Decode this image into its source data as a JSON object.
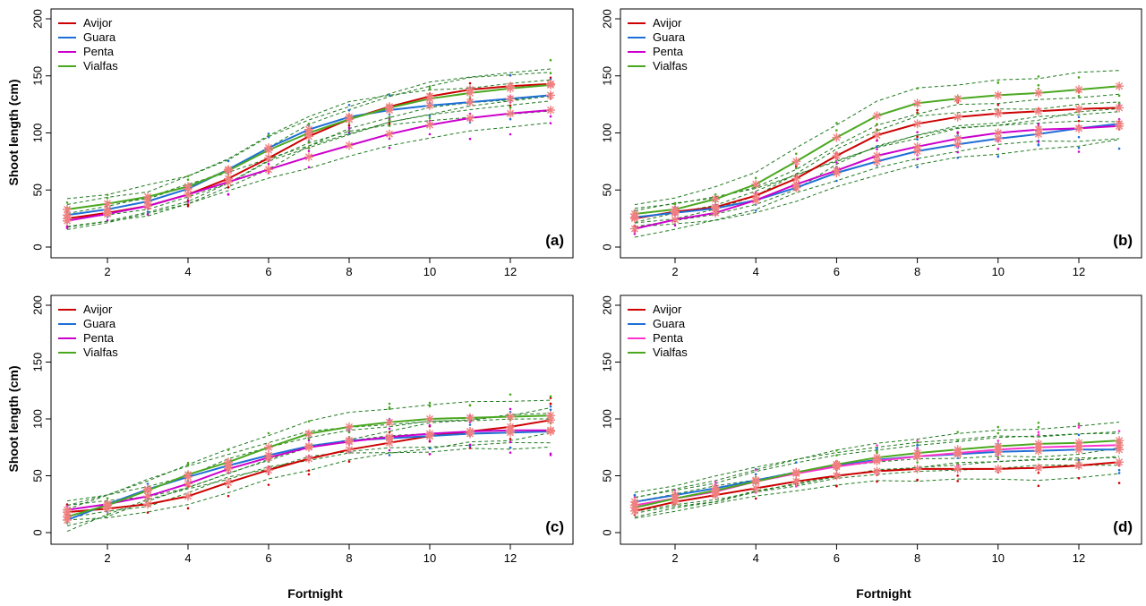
{
  "figure": {
    "ylabel": "Shoot length  (cm)",
    "xlabel": "Fortnight"
  },
  "chart_data": [
    {
      "type": "line",
      "panel_label": "(a)",
      "xlabel": "Fortnight",
      "ylabel": "Shoot length  (cm)",
      "xlim": [
        0.6,
        13.4
      ],
      "ylim": [
        -10,
        205
      ],
      "x_ticks": [
        2,
        4,
        6,
        8,
        10,
        12
      ],
      "y_ticks": [
        0,
        50,
        100,
        150,
        200
      ],
      "x_tick_labels": [
        "2",
        "4",
        "6",
        "8",
        "10",
        "12"
      ],
      "y_tick_labels": [
        "0",
        "50",
        "100",
        "150",
        "200"
      ],
      "legend_position": "top-left",
      "x": [
        1,
        2,
        3,
        4,
        5,
        6,
        7,
        8,
        9,
        10,
        11,
        12,
        13
      ],
      "series": [
        {
          "name": "Avijor",
          "color": "#cc0000",
          "values": [
            25,
            30,
            36,
            46,
            60,
            78,
            97,
            112,
            123,
            132,
            138,
            141,
            143
          ]
        },
        {
          "name": "Guara",
          "color": "#1f6fd6",
          "values": [
            28,
            33,
            40,
            51,
            68,
            87,
            103,
            114,
            120,
            124,
            127,
            130,
            133
          ]
        },
        {
          "name": "Penta",
          "color": "#cc00cc",
          "values": [
            23,
            29,
            36,
            46,
            57,
            68,
            79,
            89,
            99,
            107,
            113,
            117,
            120
          ]
        },
        {
          "name": "Vialfas",
          "color": "#4aa820",
          "values": [
            33,
            38,
            44,
            53,
            67,
            85,
            100,
            112,
            122,
            130,
            135,
            139,
            142
          ]
        }
      ]
    },
    {
      "type": "line",
      "panel_label": "(b)",
      "xlabel": "Fortnight",
      "ylabel": "Shoot length  (cm)",
      "xlim": [
        0.6,
        13.4
      ],
      "ylim": [
        -10,
        205
      ],
      "x_ticks": [
        2,
        4,
        6,
        8,
        10,
        12
      ],
      "y_ticks": [
        0,
        50,
        100,
        150,
        200
      ],
      "x_tick_labels": [
        "2",
        "4",
        "6",
        "8",
        "10",
        "12"
      ],
      "y_tick_labels": [
        "0",
        "50",
        "100",
        "150",
        "200"
      ],
      "legend_position": "top-left",
      "x": [
        1,
        2,
        3,
        4,
        5,
        6,
        7,
        8,
        9,
        10,
        11,
        12,
        13
      ],
      "series": [
        {
          "name": "Avijor",
          "color": "#cc0000",
          "values": [
            25,
            31,
            35,
            45,
            60,
            80,
            98,
            108,
            114,
            117,
            119,
            121,
            122
          ]
        },
        {
          "name": "Guara",
          "color": "#1f6fd6",
          "values": [
            26,
            30,
            34,
            41,
            52,
            65,
            75,
            84,
            90,
            95,
            99,
            104,
            108
          ]
        },
        {
          "name": "Penta",
          "color": "#cc00cc",
          "values": [
            16,
            24,
            30,
            41,
            55,
            67,
            80,
            88,
            95,
            100,
            103,
            104,
            106
          ]
        },
        {
          "name": "Vialfas",
          "color": "#4aa820",
          "values": [
            29,
            33,
            42,
            55,
            75,
            96,
            115,
            126,
            130,
            133,
            135,
            138,
            141
          ]
        }
      ]
    },
    {
      "type": "line",
      "panel_label": "(c)",
      "xlabel": "Fortnight",
      "ylabel": "Shoot length  (cm)",
      "xlim": [
        0.6,
        13.4
      ],
      "ylim": [
        -10,
        205
      ],
      "x_ticks": [
        2,
        4,
        6,
        8,
        10,
        12
      ],
      "y_ticks": [
        0,
        50,
        100,
        150,
        200
      ],
      "x_tick_labels": [
        "2",
        "4",
        "6",
        "8",
        "10",
        "12"
      ],
      "y_tick_labels": [
        "0",
        "50",
        "100",
        "150",
        "200"
      ],
      "legend_position": "top-left",
      "x": [
        1,
        2,
        3,
        4,
        5,
        6,
        7,
        8,
        9,
        10,
        11,
        12,
        13
      ],
      "series": [
        {
          "name": "Avijor",
          "color": "#cc0000",
          "values": [
            18,
            21,
            25,
            32,
            44,
            55,
            65,
            73,
            79,
            85,
            89,
            93,
            99
          ]
        },
        {
          "name": "Guara",
          "color": "#1f6fd6",
          "values": [
            11,
            25,
            38,
            49,
            59,
            68,
            76,
            81,
            83,
            85,
            87,
            88,
            89
          ]
        },
        {
          "name": "Penta",
          "color": "#cc00cc",
          "values": [
            20,
            25,
            32,
            43,
            56,
            66,
            75,
            80,
            84,
            87,
            89,
            90,
            90
          ]
        },
        {
          "name": "Vialfas",
          "color": "#4aa820",
          "values": [
            14,
            24,
            37,
            51,
            62,
            75,
            87,
            93,
            97,
            100,
            101,
            102,
            103
          ]
        }
      ]
    },
    {
      "type": "line",
      "panel_label": "(d)",
      "xlabel": "Fortnight",
      "ylabel": "Shoot length  (cm)",
      "xlim": [
        0.6,
        13.4
      ],
      "ylim": [
        -10,
        205
      ],
      "x_ticks": [
        2,
        4,
        6,
        8,
        10,
        12
      ],
      "y_ticks": [
        0,
        50,
        100,
        150,
        200
      ],
      "x_tick_labels": [
        "2",
        "4",
        "6",
        "8",
        "10",
        "12"
      ],
      "y_tick_labels": [
        "0",
        "50",
        "100",
        "150",
        "200"
      ],
      "legend_position": "top-left",
      "x": [
        1,
        2,
        3,
        4,
        5,
        6,
        7,
        8,
        9,
        10,
        11,
        12,
        13
      ],
      "series": [
        {
          "name": "Avijor",
          "color": "#cc0000",
          "values": [
            19,
            27,
            33,
            39,
            45,
            50,
            54,
            56,
            56,
            56,
            57,
            59,
            62
          ]
        },
        {
          "name": "Guara",
          "color": "#1f6fd6",
          "values": [
            27,
            33,
            39,
            46,
            53,
            59,
            64,
            67,
            69,
            71,
            72,
            73,
            73
          ]
        },
        {
          "name": "Penta",
          "color": "#ff33cc",
          "values": [
            24,
            30,
            36,
            45,
            52,
            58,
            63,
            67,
            70,
            73,
            75,
            76,
            77
          ]
        },
        {
          "name": "Vialfas",
          "color": "#4aa820",
          "values": [
            22,
            30,
            37,
            45,
            53,
            60,
            66,
            70,
            73,
            76,
            78,
            79,
            81
          ]
        }
      ]
    }
  ]
}
